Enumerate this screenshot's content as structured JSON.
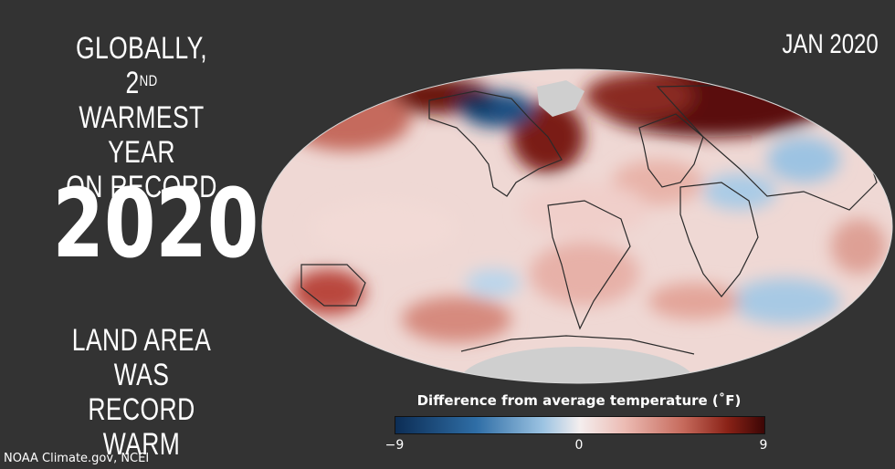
{
  "headline_top": {
    "line1": "GLOBALLY, 2",
    "sup": "ND",
    "line2": "WARMEST YEAR",
    "line3": "ON RECORD"
  },
  "year": "2020",
  "headline_bottom": {
    "line1": "LAND AREA WAS",
    "line2": "RECORD WARM"
  },
  "date_label": "JAN 2020",
  "legend": {
    "title": "Difference from average temperature (˚F)",
    "min_label": "−9",
    "mid_label": "0",
    "max_label": "9"
  },
  "credit": "NOAA Climate.gov, NCEI",
  "colors": {
    "background": "#333333",
    "cold": "#0c2d55",
    "neutral": "#f4eeee",
    "warm": "#3c0605",
    "no_data": "#cfcfcf"
  }
}
